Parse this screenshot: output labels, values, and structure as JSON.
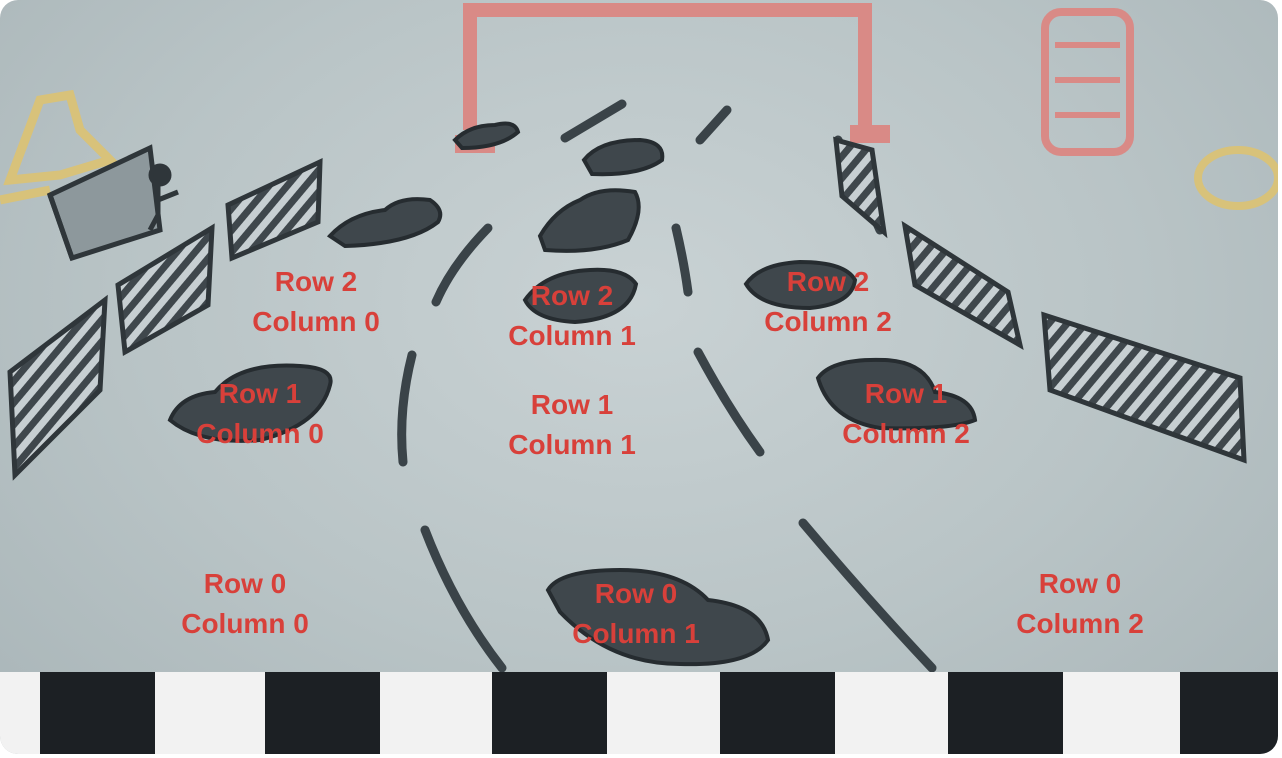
{
  "labels": [
    {
      "id": "r2c0",
      "row": "Row 2",
      "col": "Column 0"
    },
    {
      "id": "r2c1",
      "row": "Row 2",
      "col": "Column 1"
    },
    {
      "id": "r2c2",
      "row": "Row 2",
      "col": "Column 2"
    },
    {
      "id": "r1c0",
      "row": "Row 1",
      "col": "Column 0"
    },
    {
      "id": "r1c1",
      "row": "Row 1",
      "col": "Column 1"
    },
    {
      "id": "r1c2",
      "row": "Row 1",
      "col": "Column 2"
    },
    {
      "id": "r0c0",
      "row": "Row 0",
      "col": "Column 0"
    },
    {
      "id": "r0c1",
      "row": "Row 0",
      "col": "Column 1"
    },
    {
      "id": "r0c2",
      "row": "Row 0",
      "col": "Column 2"
    }
  ],
  "colors": {
    "label": "#d8403a",
    "track": "#b9c4c6",
    "ink": "#3a4348",
    "doodle_red": "#d98a86",
    "doodle_yellow": "#d8c27a"
  }
}
